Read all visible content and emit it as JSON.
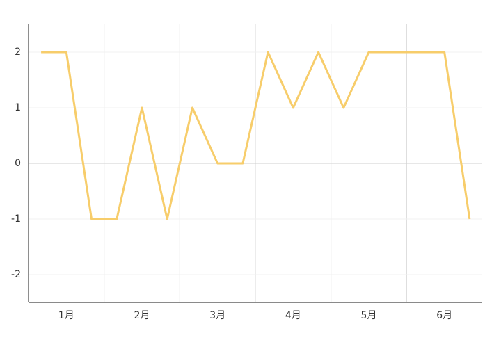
{
  "chart_data": {
    "type": "line",
    "categories": [
      null,
      "1月",
      null,
      null,
      "2月",
      null,
      null,
      "3月",
      null,
      null,
      "4月",
      null,
      null,
      "5月",
      null,
      null,
      "6月",
      null
    ],
    "series": [
      {
        "color": "#f7cd6b",
        "values": [
          2,
          2,
          -1,
          -1,
          1,
          -1,
          1,
          0,
          0,
          2,
          1,
          2,
          1,
          2,
          2,
          2,
          2,
          -1
        ]
      }
    ],
    "ylim": [
      -2.5,
      2.5
    ],
    "yticks": [
      -2,
      -1,
      0,
      1,
      2
    ],
    "grid": true
  }
}
